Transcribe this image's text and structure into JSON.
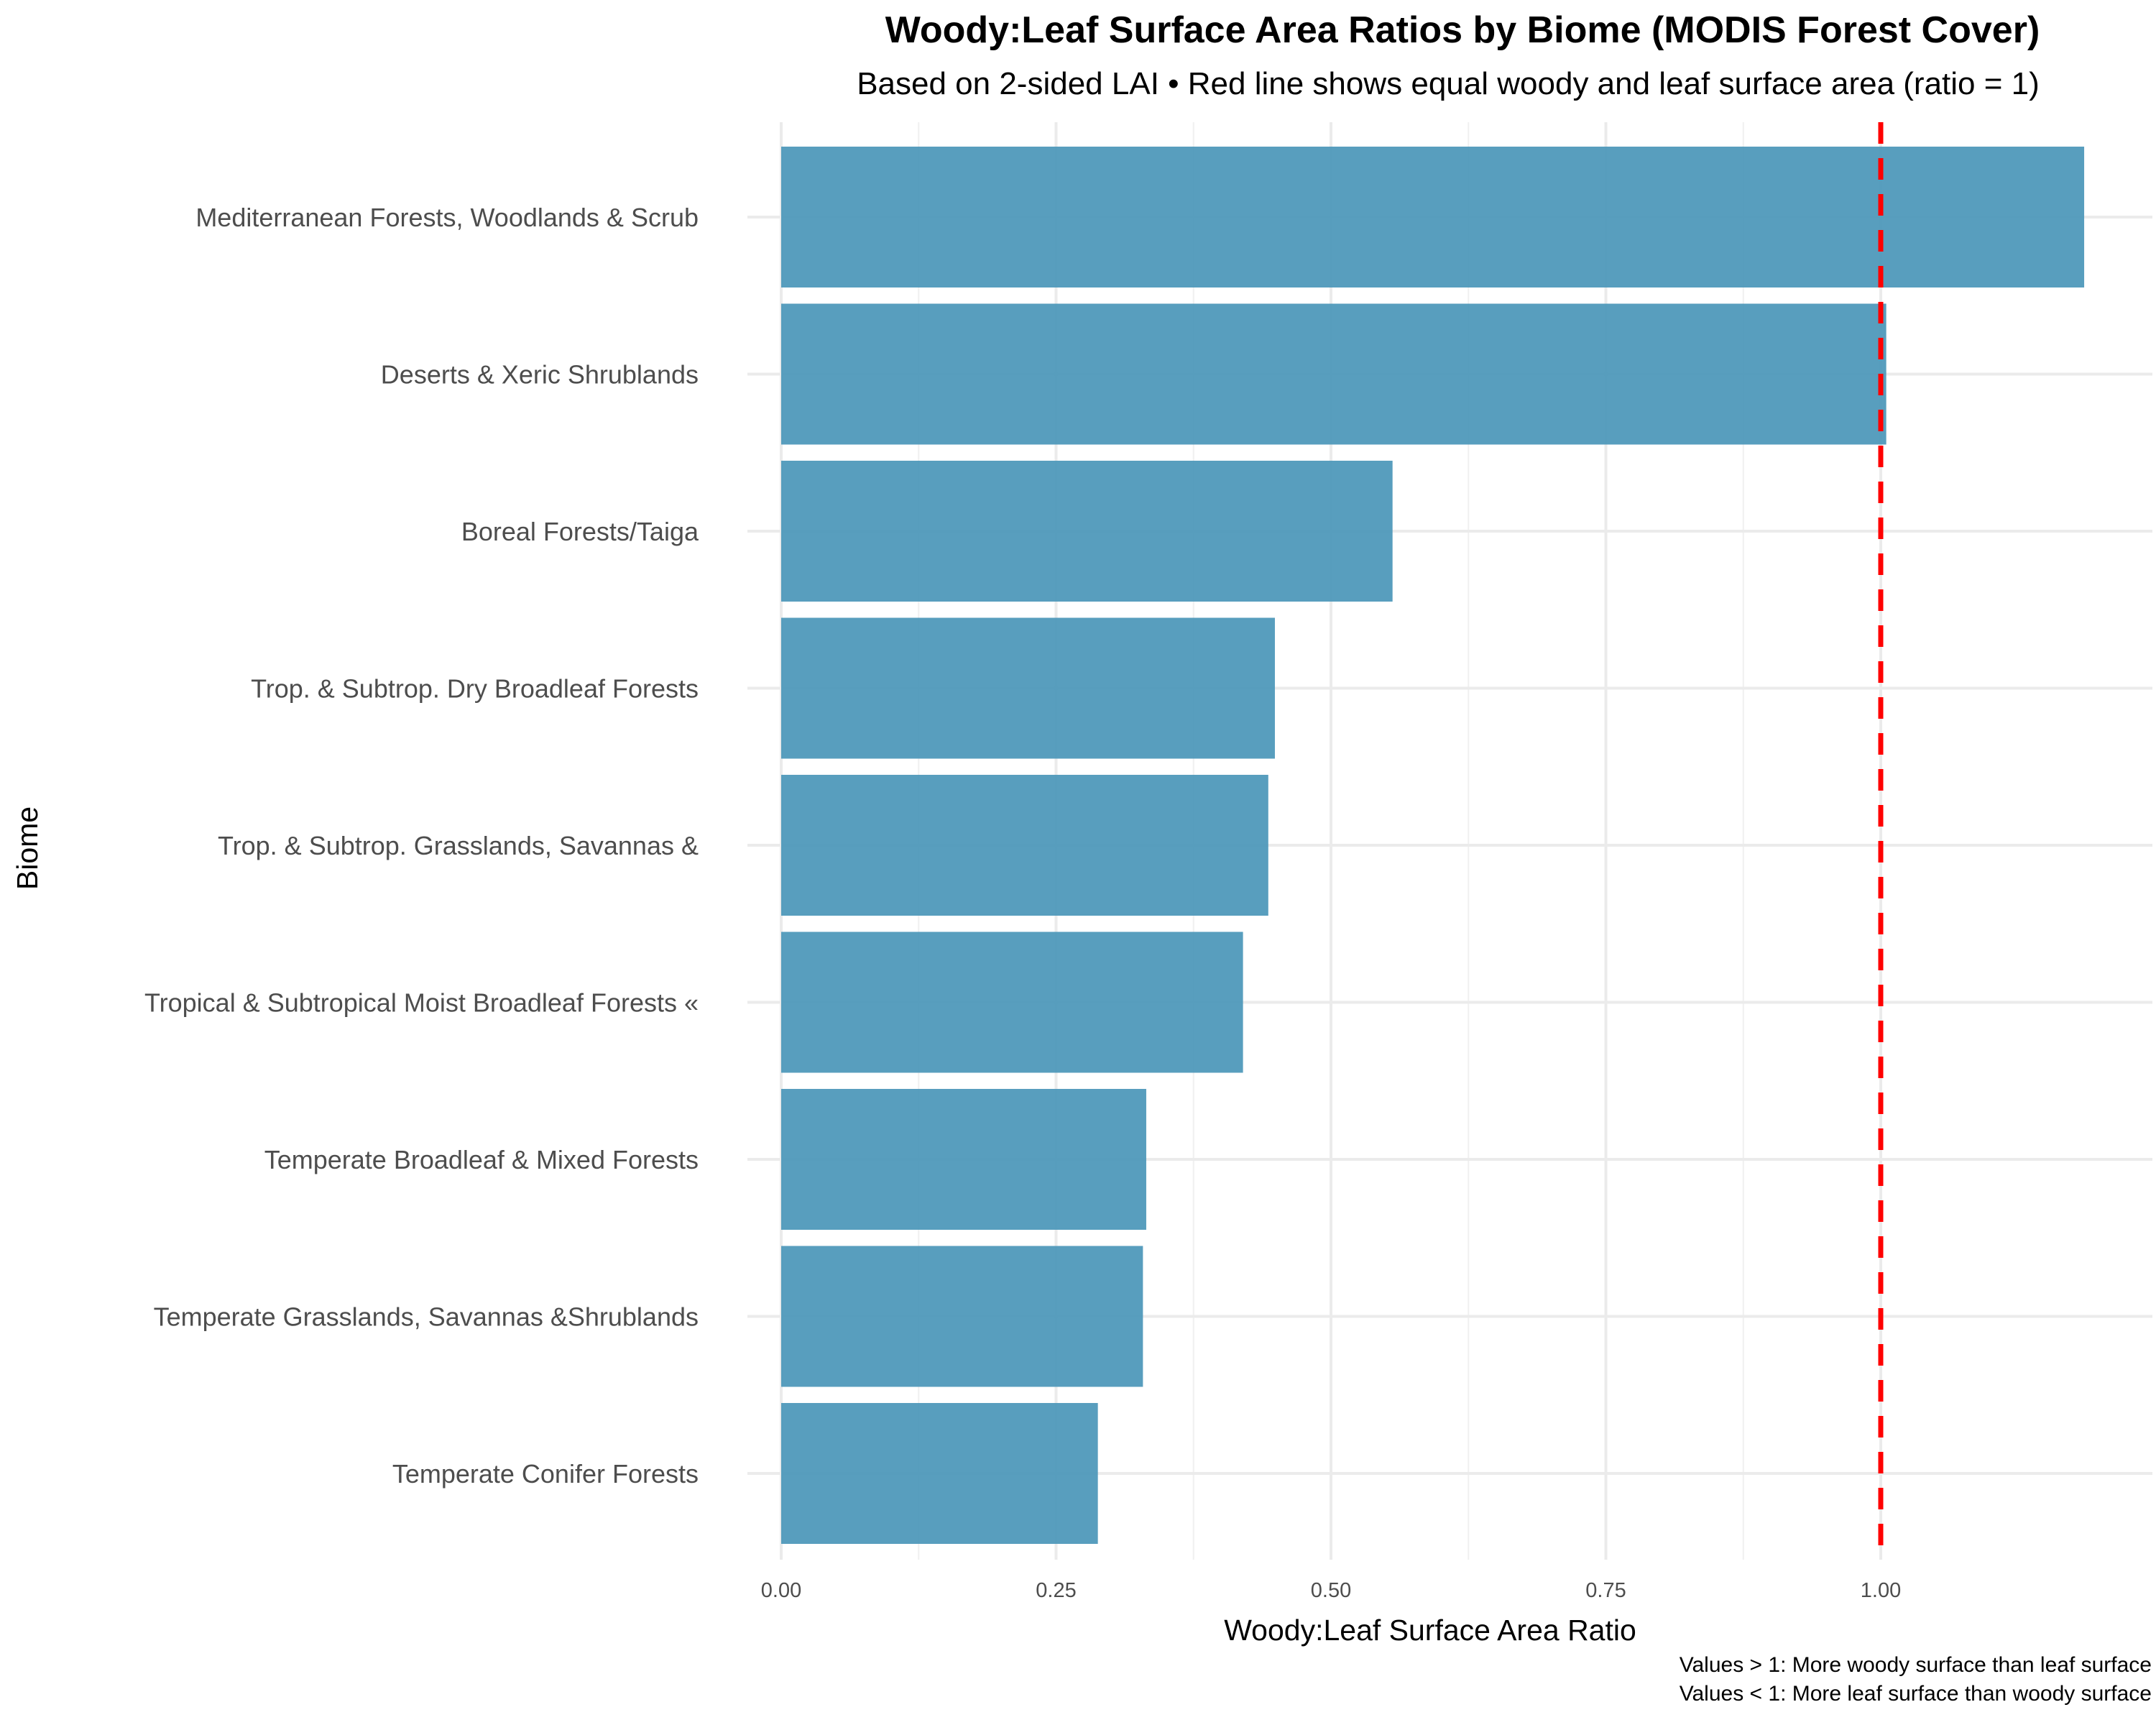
{
  "chart_data": {
    "type": "bar",
    "orientation": "horizontal",
    "title": "Woody:Leaf Surface Area Ratios by Biome (MODIS Forest Cover)",
    "subtitle": "Based on 2-sided LAI • Red line shows equal woody and leaf surface area (ratio = 1)",
    "xlabel": "Woody:Leaf Surface Area Ratio",
    "ylabel": "Biome",
    "categories": [
      "Mediterranean Forests, Woodlands & Scrub",
      "Deserts & Xeric Shrublands",
      "Boreal Forests/Taiga",
      "Trop. & Subtrop. Dry Broadleaf Forests",
      "Trop. & Subtrop. Grasslands, Savannas &",
      "Tropical & Subtropical Moist Broadleaf Forests «",
      "Temperate Broadleaf & Mixed Forests",
      "Temperate Grasslands, Savannas &Shrublands",
      "Temperate Conifer Forests"
    ],
    "values": [
      1.185,
      1.005,
      0.556,
      0.449,
      0.443,
      0.42,
      0.332,
      0.329,
      0.288
    ],
    "xlim": [
      -0.03,
      1.2
    ],
    "x_ticks": [
      "0.00",
      "0.25",
      "0.50",
      "0.75",
      "1.00"
    ],
    "x_tick_values": [
      0,
      0.25,
      0.5,
      0.75,
      1.0
    ],
    "reference_line": {
      "value": 1.0,
      "color": "#ff0000",
      "style": "dashed"
    },
    "bar_color": "#4a96b8",
    "grid": true,
    "captions": [
      "Values > 1: More woody surface than leaf surface",
      "Values < 1: More leaf surface than woody surface"
    ]
  }
}
